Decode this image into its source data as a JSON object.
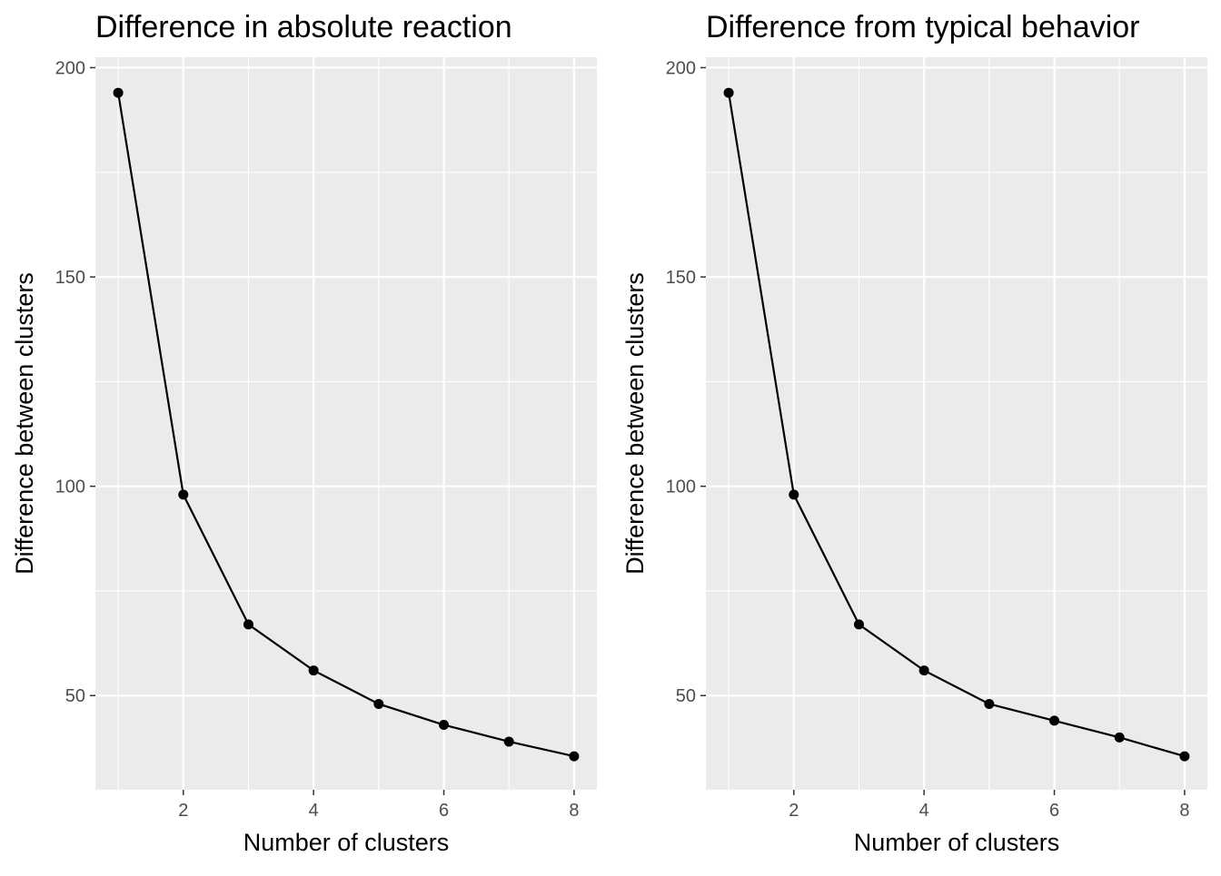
{
  "chart_data": [
    {
      "type": "line",
      "title": "Difference in absolute reaction",
      "xlabel": "Number of clusters",
      "ylabel": "Difference between clusters",
      "x": [
        1,
        2,
        3,
        4,
        5,
        6,
        7,
        8
      ],
      "series": [
        {
          "values": [
            194,
            98,
            67,
            56,
            48,
            43,
            39,
            35.5
          ]
        }
      ],
      "xlim": [
        0.65,
        8.35
      ],
      "ylim": [
        27.5,
        202.5
      ],
      "xticks": [
        2,
        4,
        6,
        8
      ],
      "yticks": [
        50,
        100,
        150,
        200
      ],
      "xtick_labels": [
        "2",
        "4",
        "6",
        "8"
      ],
      "ytick_labels": [
        "50",
        "100",
        "150",
        "200"
      ],
      "grid": true,
      "legend": "none"
    },
    {
      "type": "line",
      "title": "Difference from typical behavior",
      "xlabel": "Number of clusters",
      "ylabel": "Difference between clusters",
      "x": [
        1,
        2,
        3,
        4,
        5,
        6,
        7,
        8
      ],
      "series": [
        {
          "values": [
            194,
            98,
            67,
            56,
            48,
            44,
            40,
            35.5
          ]
        }
      ],
      "xlim": [
        0.65,
        8.35
      ],
      "ylim": [
        27.5,
        202.5
      ],
      "xticks": [
        2,
        4,
        6,
        8
      ],
      "yticks": [
        50,
        100,
        150,
        200
      ],
      "xtick_labels": [
        "2",
        "4",
        "6",
        "8"
      ],
      "ytick_labels": [
        "50",
        "100",
        "150",
        "200"
      ],
      "grid": true,
      "legend": "none"
    }
  ],
  "colors": {
    "panel_background": "#ebebeb",
    "grid": "#ffffff",
    "series": "#000000",
    "tick_text": "#4d4d4d"
  }
}
